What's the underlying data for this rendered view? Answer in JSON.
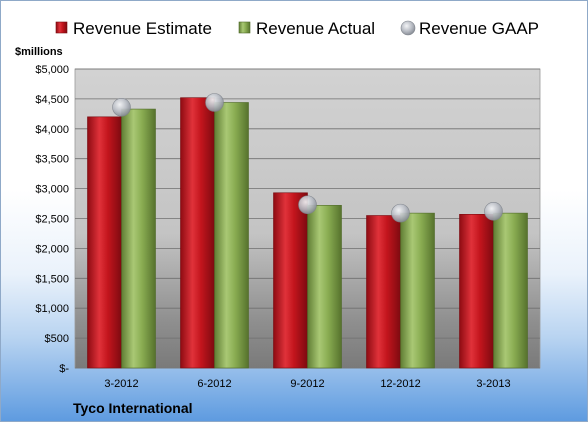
{
  "chart_data": {
    "type": "bar",
    "title": "",
    "ylabel": "$millions",
    "company": "Tyco International",
    "categories": [
      "3-2012",
      "6-2012",
      "9-2012",
      "12-2012",
      "3-2013"
    ],
    "series": [
      {
        "name": "Revenue Estimate",
        "kind": "bar",
        "color": "#c0141c",
        "values": [
          4200,
          4520,
          2930,
          2550,
          2570
        ]
      },
      {
        "name": "Revenue Actual",
        "kind": "bar",
        "color": "#8aad52",
        "values": [
          4330,
          4440,
          2720,
          2590,
          2590
        ]
      },
      {
        "name": "Revenue GAAP",
        "kind": "marker",
        "color": "#b8bcc4",
        "values": [
          4360,
          4440,
          2730,
          2590,
          2620
        ]
      }
    ],
    "ylim": [
      0,
      5000
    ],
    "yticks": [
      0,
      500,
      1000,
      1500,
      2000,
      2500,
      3000,
      3500,
      4000,
      4500,
      5000
    ],
    "ytick_labels": [
      "$-",
      "$500",
      "$1,000",
      "$1,500",
      "$2,000",
      "$2,500",
      "$3,000",
      "$3,500",
      "$4,000",
      "$4,500",
      "$5,000"
    ],
    "grid": true,
    "legend_position": "top"
  }
}
